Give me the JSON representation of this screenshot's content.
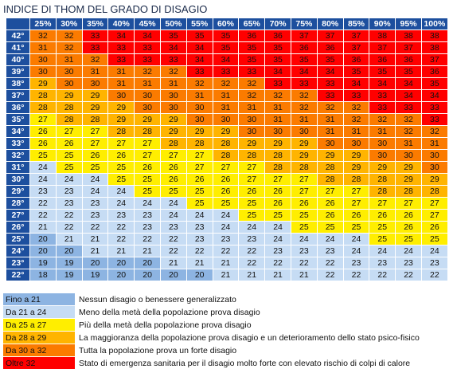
{
  "title": "INDICE DI THOM DEL GRADO DI DISAGIO",
  "table": {
    "columns": [
      "25%",
      "30%",
      "35%",
      "40%",
      "45%",
      "50%",
      "55%",
      "60%",
      "65%",
      "70%",
      "75%",
      "80%",
      "85%",
      "90%",
      "95%",
      "100%"
    ],
    "rows": [
      {
        "label": "42°",
        "values": [
          32,
          32,
          33,
          34,
          34,
          35,
          35,
          35,
          36,
          36,
          37,
          37,
          37,
          38,
          38,
          38
        ]
      },
      {
        "label": "41°",
        "values": [
          31,
          32,
          33,
          33,
          33,
          34,
          34,
          35,
          35,
          35,
          36,
          36,
          37,
          37,
          37,
          38
        ]
      },
      {
        "label": "40°",
        "values": [
          30,
          31,
          32,
          33,
          33,
          33,
          34,
          34,
          35,
          35,
          35,
          35,
          36,
          36,
          36,
          37
        ]
      },
      {
        "label": "39°",
        "values": [
          30,
          30,
          31,
          31,
          32,
          32,
          33,
          33,
          33,
          34,
          34,
          34,
          35,
          35,
          35,
          36
        ]
      },
      {
        "label": "38°",
        "values": [
          29,
          30,
          30,
          31,
          31,
          31,
          32,
          32,
          32,
          33,
          33,
          33,
          34,
          34,
          34,
          35
        ]
      },
      {
        "label": "37°",
        "values": [
          28,
          29,
          29,
          30,
          30,
          30,
          31,
          31,
          32,
          32,
          32,
          33,
          33,
          33,
          34,
          34
        ]
      },
      {
        "label": "36°",
        "values": [
          28,
          28,
          29,
          29,
          30,
          30,
          30,
          31,
          31,
          31,
          32,
          32,
          32,
          33,
          33,
          33
        ]
      },
      {
        "label": "35°",
        "values": [
          27,
          28,
          28,
          29,
          29,
          29,
          30,
          30,
          30,
          31,
          31,
          31,
          32,
          32,
          32,
          33
        ]
      },
      {
        "label": "34°",
        "values": [
          26,
          27,
          27,
          28,
          28,
          29,
          29,
          29,
          30,
          30,
          30,
          31,
          31,
          31,
          32,
          32
        ]
      },
      {
        "label": "33°",
        "values": [
          26,
          26,
          27,
          27,
          27,
          28,
          28,
          28,
          29,
          29,
          29,
          30,
          30,
          30,
          31,
          31
        ]
      },
      {
        "label": "32°",
        "values": [
          25,
          25,
          26,
          26,
          27,
          27,
          27,
          28,
          28,
          28,
          29,
          29,
          29,
          30,
          30,
          30
        ]
      },
      {
        "label": "31°",
        "values": [
          24,
          25,
          25,
          25,
          26,
          26,
          27,
          27,
          27,
          28,
          28,
          28,
          29,
          29,
          29,
          30
        ]
      },
      {
        "label": "30°",
        "values": [
          24,
          24,
          24,
          25,
          25,
          26,
          26,
          26,
          27,
          27,
          27,
          28,
          28,
          28,
          29,
          29
        ]
      },
      {
        "label": "29°",
        "values": [
          23,
          23,
          24,
          24,
          25,
          25,
          25,
          26,
          26,
          26,
          27,
          27,
          27,
          28,
          28,
          28
        ]
      },
      {
        "label": "28°",
        "values": [
          22,
          23,
          23,
          24,
          24,
          24,
          25,
          25,
          25,
          26,
          26,
          26,
          27,
          27,
          27,
          27
        ]
      },
      {
        "label": "27°",
        "values": [
          22,
          22,
          23,
          23,
          23,
          24,
          24,
          24,
          25,
          25,
          25,
          26,
          26,
          26,
          26,
          27
        ]
      },
      {
        "label": "26°",
        "values": [
          21,
          22,
          22,
          22,
          23,
          23,
          23,
          24,
          24,
          24,
          25,
          25,
          25,
          25,
          26,
          26
        ]
      },
      {
        "label": "25°",
        "values": [
          20,
          21,
          21,
          22,
          22,
          22,
          23,
          23,
          23,
          24,
          24,
          24,
          24,
          25,
          25,
          25
        ]
      },
      {
        "label": "24°",
        "values": [
          20,
          20,
          21,
          21,
          21,
          22,
          22,
          22,
          22,
          23,
          23,
          23,
          24,
          24,
          24,
          24
        ]
      },
      {
        "label": "23°",
        "values": [
          19,
          19,
          20,
          20,
          20,
          21,
          21,
          21,
          22,
          22,
          22,
          22,
          23,
          23,
          23,
          23
        ]
      },
      {
        "label": "22°",
        "values": [
          18,
          19,
          19,
          20,
          20,
          20,
          20,
          21,
          21,
          21,
          21,
          22,
          22,
          22,
          22,
          22
        ]
      }
    ]
  },
  "legend": [
    {
      "label": "Fino a 21",
      "color": "#8db4e2",
      "text": "Nessun disagio o benessere generalizzato"
    },
    {
      "label": "Da 21 a 24",
      "color": "#c6dcf4",
      "text": "Meno della metà della popolazione prova disagio"
    },
    {
      "label": "Da 25 a 27",
      "color": "#ffee00",
      "text": "Più della metà della popolazione prova disagio"
    },
    {
      "label": "Da 28 a 29",
      "color": "#ffb400",
      "text": "La maggioranza della popolazione prova disagio e un deterioramento dello stato psico-fisico"
    },
    {
      "label": "Da 30 a 32",
      "color": "#fb7b00",
      "text": "Tutta la popolazione prova un forte disagio"
    },
    {
      "label": "Oltre 32",
      "color": "#ff0000",
      "text": "Stato di emergenza sanitaria per il disagio molto forte con elevato rischio di colpi di calore"
    }
  ]
}
